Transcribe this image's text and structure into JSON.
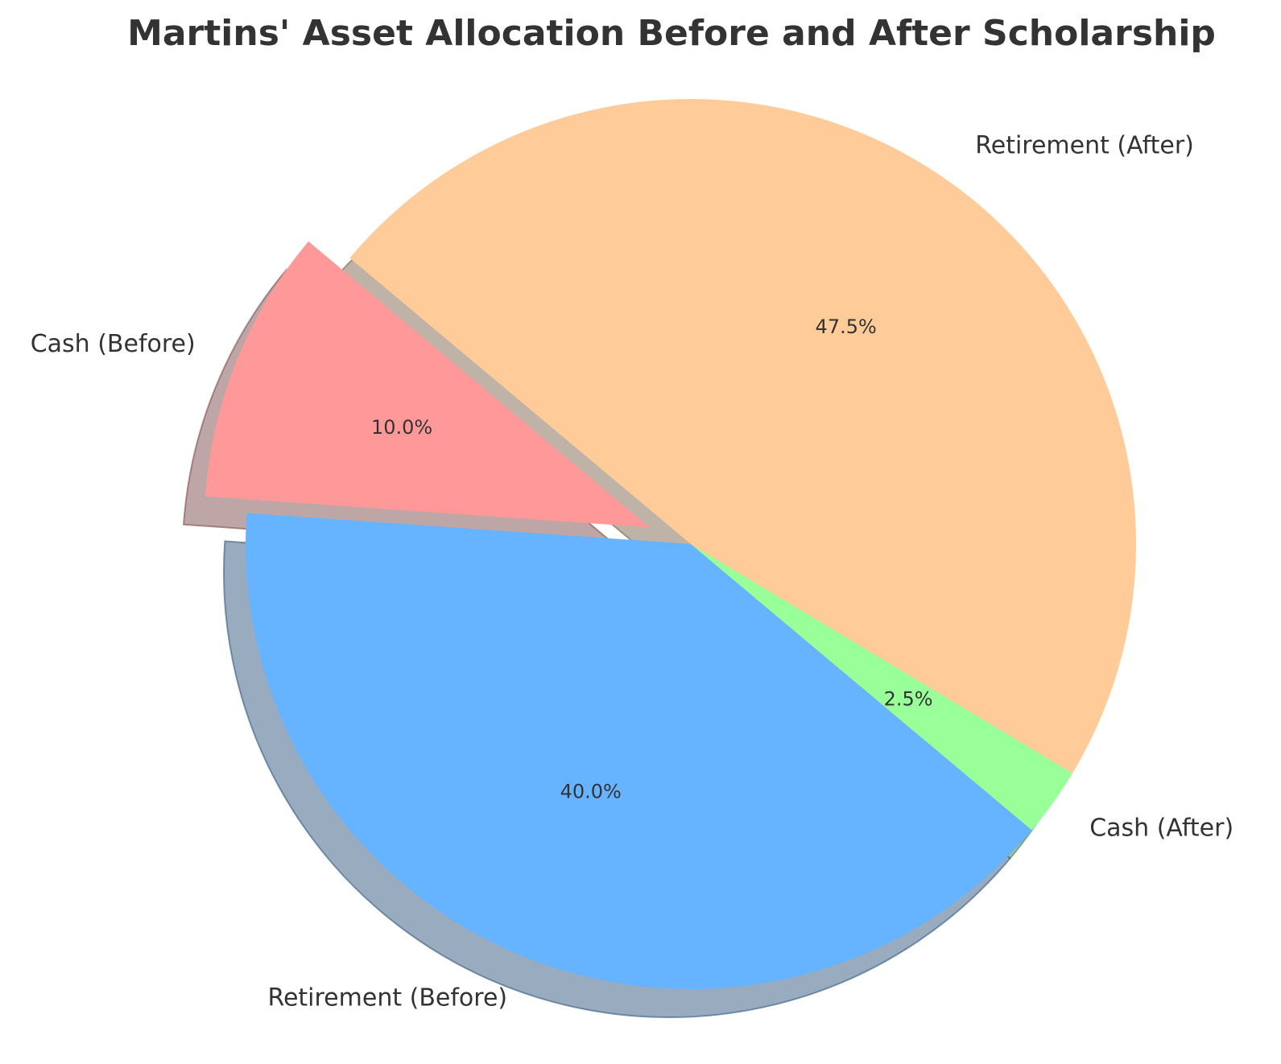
{
  "chart_data": {
    "type": "pie",
    "title": "Martins' Asset Allocation Before and After Scholarship",
    "slices": [
      {
        "label": "Cash (Before)",
        "value": 10.0,
        "pct_label": "10.0%",
        "color": "#ff9999",
        "exploded": true
      },
      {
        "label": "Retirement (Before)",
        "value": 40.0,
        "pct_label": "40.0%",
        "color": "#66b3ff",
        "exploded": false
      },
      {
        "label": "Cash (After)",
        "value": 2.5,
        "pct_label": "2.5%",
        "color": "#99ff99",
        "exploded": false
      },
      {
        "label": "Retirement (After)",
        "value": 47.5,
        "pct_label": "47.5%",
        "color": "#ffcc99",
        "exploded": false
      }
    ],
    "start_angle_deg": 140,
    "direction": "counterclockwise",
    "shadow": true
  }
}
